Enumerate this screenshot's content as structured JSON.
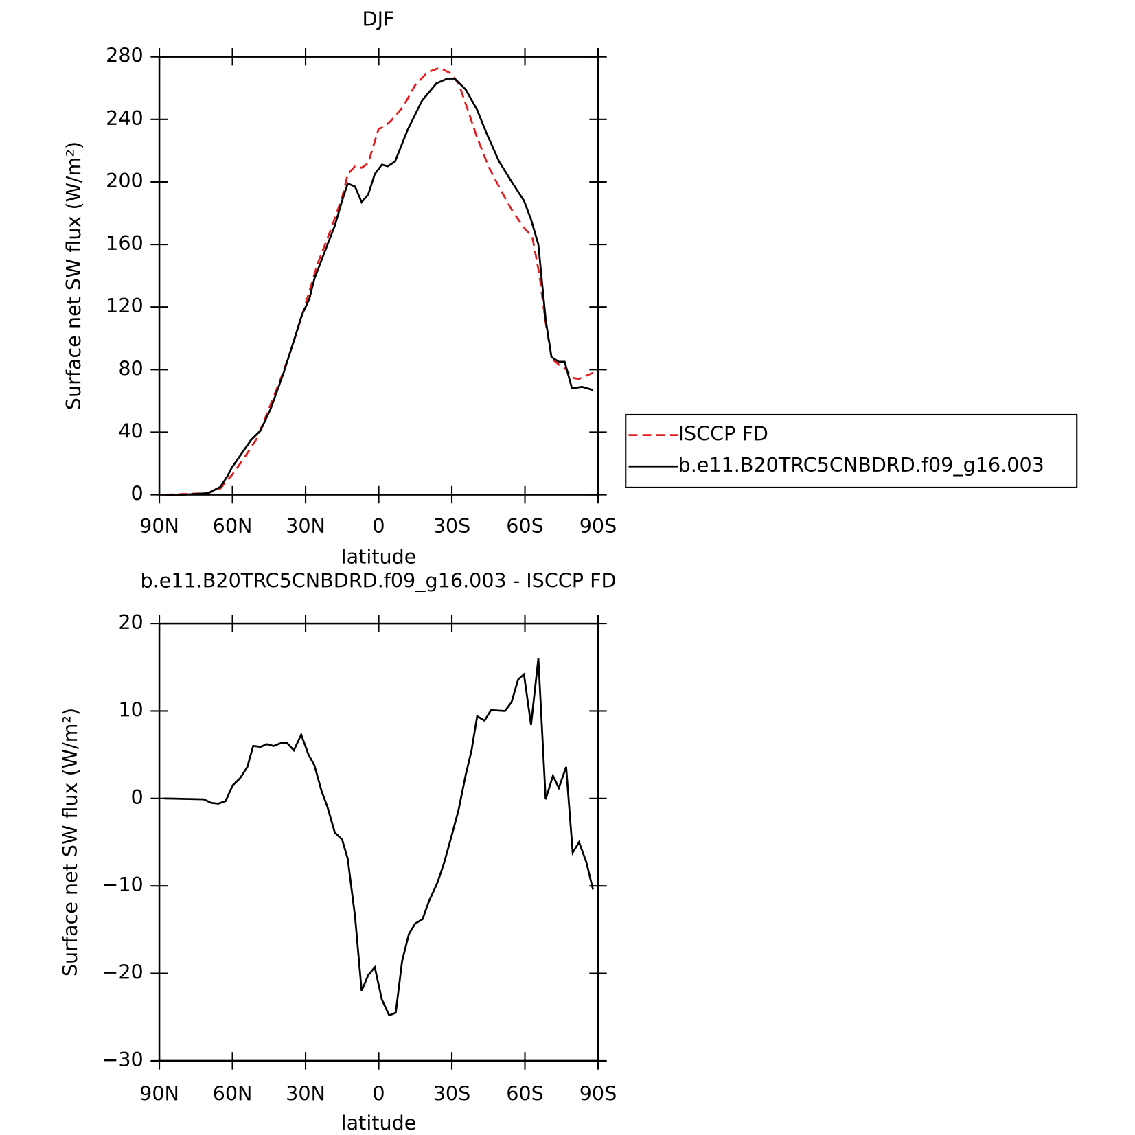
{
  "chart_data": [
    {
      "type": "line",
      "title": "DJF",
      "xlabel": "latitude",
      "ylabel": "Surface net SW flux (W/m²)",
      "xlim": [
        90,
        -90
      ],
      "xticks": [
        {
          "value": 90,
          "label": "90N"
        },
        {
          "value": 60,
          "label": "60N"
        },
        {
          "value": 30,
          "label": "30N"
        },
        0,
        {
          "value": -30,
          "label": "30S"
        },
        {
          "value": -60,
          "label": "60S"
        },
        {
          "value": -90,
          "label": "90S"
        }
      ],
      "ylim": [
        0,
        280
      ],
      "yticks": [
        0,
        40,
        80,
        120,
        160,
        200,
        240,
        280
      ],
      "legend": "right",
      "series": [
        {
          "name": "ISCCP FD",
          "color": "#e41a1c",
          "linestyle": "dashed",
          "x": [
            88,
            70,
            65,
            60,
            55,
            50,
            45,
            40,
            35,
            30,
            25,
            20,
            15,
            12.7,
            9.7,
            7,
            4.3,
            1.6,
            0,
            -2,
            -5,
            -10,
            -15,
            -20,
            -25,
            -30,
            -33,
            -37,
            -40,
            -45,
            -50,
            -55,
            -60,
            -63,
            -66,
            -68.5,
            -71,
            -74,
            -77,
            -79,
            -82,
            -85,
            -88
          ],
          "values": [
            0,
            1,
            4,
            13,
            24,
            36,
            55,
            75,
            97,
            122,
            148,
            168,
            190,
            205,
            210,
            209,
            212,
            226,
            234,
            235,
            239,
            248,
            262,
            270,
            273,
            269,
            262,
            244,
            230,
            210,
            195,
            181,
            170,
            165,
            140,
            110,
            87,
            83,
            80,
            75,
            74,
            76,
            78
          ]
        },
        {
          "name": "b.e11.B20TRC5CNBDRD.f09_g16.003",
          "color": "#000000",
          "linestyle": "solid",
          "x": [
            88,
            80,
            70,
            65,
            62,
            60.4,
            52.4,
            48.5,
            44.3,
            39,
            34.5,
            31.5,
            28.5,
            26.4,
            21,
            18,
            15,
            12.7,
            9.7,
            7,
            4.3,
            1.6,
            -1.3,
            -3.7,
            -6.7,
            -11.8,
            -17.8,
            -23.7,
            -28.2,
            -31.2,
            -35.7,
            -40.4,
            -44,
            -49.4,
            -55,
            -59.6,
            -62.5,
            -65.5,
            -68.5,
            -70.9,
            -73.9,
            -76.3,
            -79.3,
            -83.4,
            -87.9
          ],
          "values": [
            0,
            0,
            1,
            5,
            12,
            17,
            35,
            41,
            55,
            78,
            100,
            115,
            125,
            138,
            160,
            172,
            188,
            199,
            197,
            187,
            192,
            205,
            211,
            210,
            213,
            233,
            252,
            263,
            266,
            266,
            259,
            246,
            232,
            213,
            199,
            188,
            176,
            160,
            112,
            88,
            85,
            85,
            68,
            69,
            67
          ]
        }
      ]
    },
    {
      "type": "line",
      "title": "b.e11.B20TRC5CNBDRD.f09_g16.003 - ISCCP FD",
      "xlabel": "latitude",
      "ylabel": "Surface net SW flux (W/m²)",
      "xlim": [
        90,
        -90
      ],
      "xticks": [
        {
          "value": 90,
          "label": "90N"
        },
        {
          "value": 60,
          "label": "60N"
        },
        {
          "value": 30,
          "label": "30N"
        },
        0,
        {
          "value": -30,
          "label": "30S"
        },
        {
          "value": -60,
          "label": "60S"
        },
        {
          "value": -90,
          "label": "90S"
        }
      ],
      "ylim": [
        -30,
        20
      ],
      "yticks": [
        {
          "value": -30,
          "label": "−30"
        },
        {
          "value": -20,
          "label": "−20"
        },
        {
          "value": -10,
          "label": "−10"
        },
        0,
        10,
        20
      ],
      "color": "#000000",
      "x": [
        88,
        71.8,
        68.8,
        65.8,
        62.8,
        59.9,
        56.9,
        53.9,
        51.5,
        48.5,
        45.8,
        43.1,
        40.4,
        37.8,
        34.8,
        31.8,
        28.8,
        26.4,
        23.4,
        21,
        18,
        15,
        12.7,
        9.7,
        7,
        4.3,
        1.6,
        -1.3,
        -4.3,
        -7,
        -9.6,
        -12.4,
        -15,
        -18,
        -20.7,
        -24,
        -26.7,
        -29.7,
        -32.7,
        -35.7,
        -38.1,
        -40.4,
        -43.4,
        -46.1,
        -51.8,
        -54.5,
        -57.2,
        -59.6,
        -62.5,
        -65.5,
        -68.5,
        -71.5,
        -73.9,
        -76.9,
        -79.6,
        -82.2,
        -85.2,
        -87.9
      ],
      "values": [
        0,
        -0.1,
        -0.5,
        -0.6,
        -0.3,
        1.5,
        2.3,
        3.6,
        6.0,
        5.9,
        6.2,
        6.0,
        6.3,
        6.4,
        5.5,
        7.3,
        5.0,
        3.8,
        0.8,
        -1.0,
        -3.9,
        -4.7,
        -6.9,
        -13.5,
        -22.0,
        -20.2,
        -19.3,
        -23.0,
        -24.8,
        -24.5,
        -18.6,
        -15.5,
        -14.3,
        -13.8,
        -11.7,
        -9.7,
        -7.5,
        -4.5,
        -1.4,
        2.7,
        5.5,
        9.4,
        8.9,
        10.1,
        10.0,
        11.0,
        13.6,
        14.2,
        8.4,
        16.0,
        -0.1,
        2.6,
        1.2,
        3.6,
        -6.2,
        -5.0,
        -7.3,
        -10.4
      ]
    }
  ]
}
